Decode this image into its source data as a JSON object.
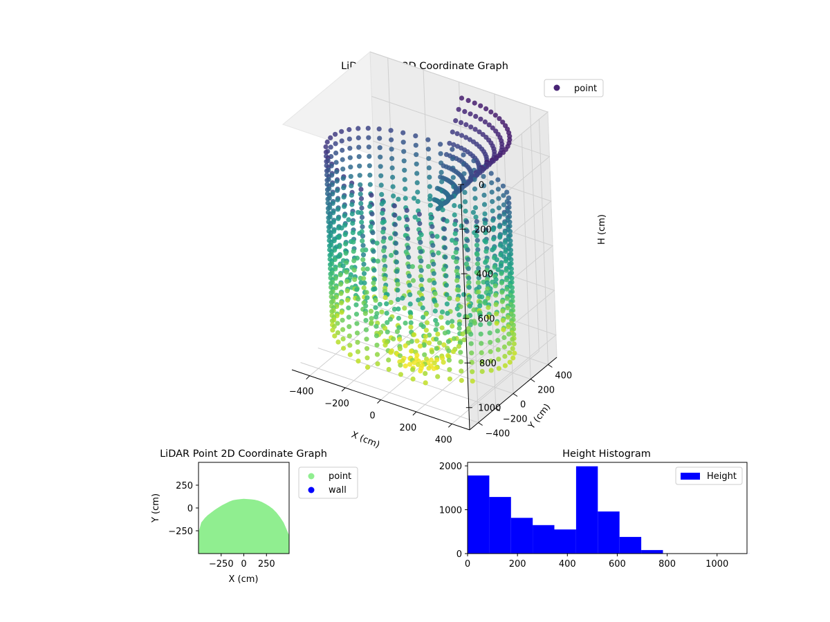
{
  "chart_data": [
    {
      "type": "scatter",
      "projection": "3d",
      "title": "LiDAR Point 3D Coordinate Graph",
      "xlabel": "X (cm)",
      "ylabel": "Y (cm)",
      "zlabel": "H (cm)",
      "xticks": [
        -400,
        -200,
        0,
        200,
        400
      ],
      "yticks": [
        -400,
        -200,
        0,
        200,
        400
      ],
      "zticks": [
        0,
        200,
        400,
        600,
        800,
        1000
      ],
      "xlim": [
        -500,
        500
      ],
      "ylim": [
        -500,
        500
      ],
      "zlim": [
        0,
        1100
      ],
      "z_inverted": true,
      "colormap": "viridis",
      "legend": {
        "placement": "top-right",
        "entries": [
          {
            "label": "point",
            "color": "#482475"
          }
        ]
      },
      "shape": {
        "description_free": true,
        "radius": 500,
        "max_height": 1100
      }
    },
    {
      "type": "scatter",
      "title": "LiDAR Point 2D Coordinate Graph",
      "xlabel": "X (cm)",
      "ylabel": "Y (cm)",
      "xticks": [
        -250,
        0,
        250
      ],
      "yticks": [
        250,
        0,
        -250
      ],
      "xlim": [
        -500,
        500
      ],
      "ylim": [
        -500,
        500
      ],
      "legend": {
        "placement": "outside-right",
        "entries": [
          {
            "label": "point",
            "color": "#90ee90"
          },
          {
            "label": "wall",
            "color": "#0000ff"
          }
        ]
      },
      "region_boundary": [
        [
          -500,
          -270
        ],
        [
          -470,
          -160
        ],
        [
          -430,
          -110
        ],
        [
          -400,
          -80
        ],
        [
          -360,
          -50
        ],
        [
          -320,
          -20
        ],
        [
          -280,
          5
        ],
        [
          -240,
          30
        ],
        [
          -200,
          50
        ],
        [
          -160,
          70
        ],
        [
          -120,
          85
        ],
        [
          -80,
          92
        ],
        [
          -40,
          97
        ],
        [
          0,
          100
        ],
        [
          40,
          98
        ],
        [
          80,
          95
        ],
        [
          120,
          90
        ],
        [
          160,
          80
        ],
        [
          200,
          65
        ],
        [
          240,
          45
        ],
        [
          280,
          20
        ],
        [
          320,
          -10
        ],
        [
          360,
          -50
        ],
        [
          400,
          -100
        ],
        [
          440,
          -160
        ],
        [
          470,
          -230
        ],
        [
          500,
          -300
        ],
        [
          500,
          -500
        ],
        [
          -500,
          -500
        ]
      ]
    },
    {
      "type": "bar",
      "subtype": "histogram",
      "title": "Height Histogram",
      "xlabel": "",
      "ylabel": "",
      "xticks": [
        0,
        200,
        400,
        600,
        800,
        1000
      ],
      "yticks": [
        0,
        1000,
        2000
      ],
      "xlim": [
        0,
        1120
      ],
      "ylim": [
        0,
        2080
      ],
      "bin_edges": [
        0,
        87,
        174,
        261,
        348,
        435,
        522,
        609,
        696,
        783,
        870,
        957,
        1044,
        1131
      ],
      "values": [
        1780,
        1290,
        815,
        650,
        550,
        1990,
        960,
        380,
        80,
        3,
        2,
        2,
        1
      ],
      "color": "#0000ff",
      "legend": {
        "placement": "top-right",
        "entries": [
          {
            "label": "Height",
            "color": "#0000ff"
          }
        ]
      }
    }
  ]
}
